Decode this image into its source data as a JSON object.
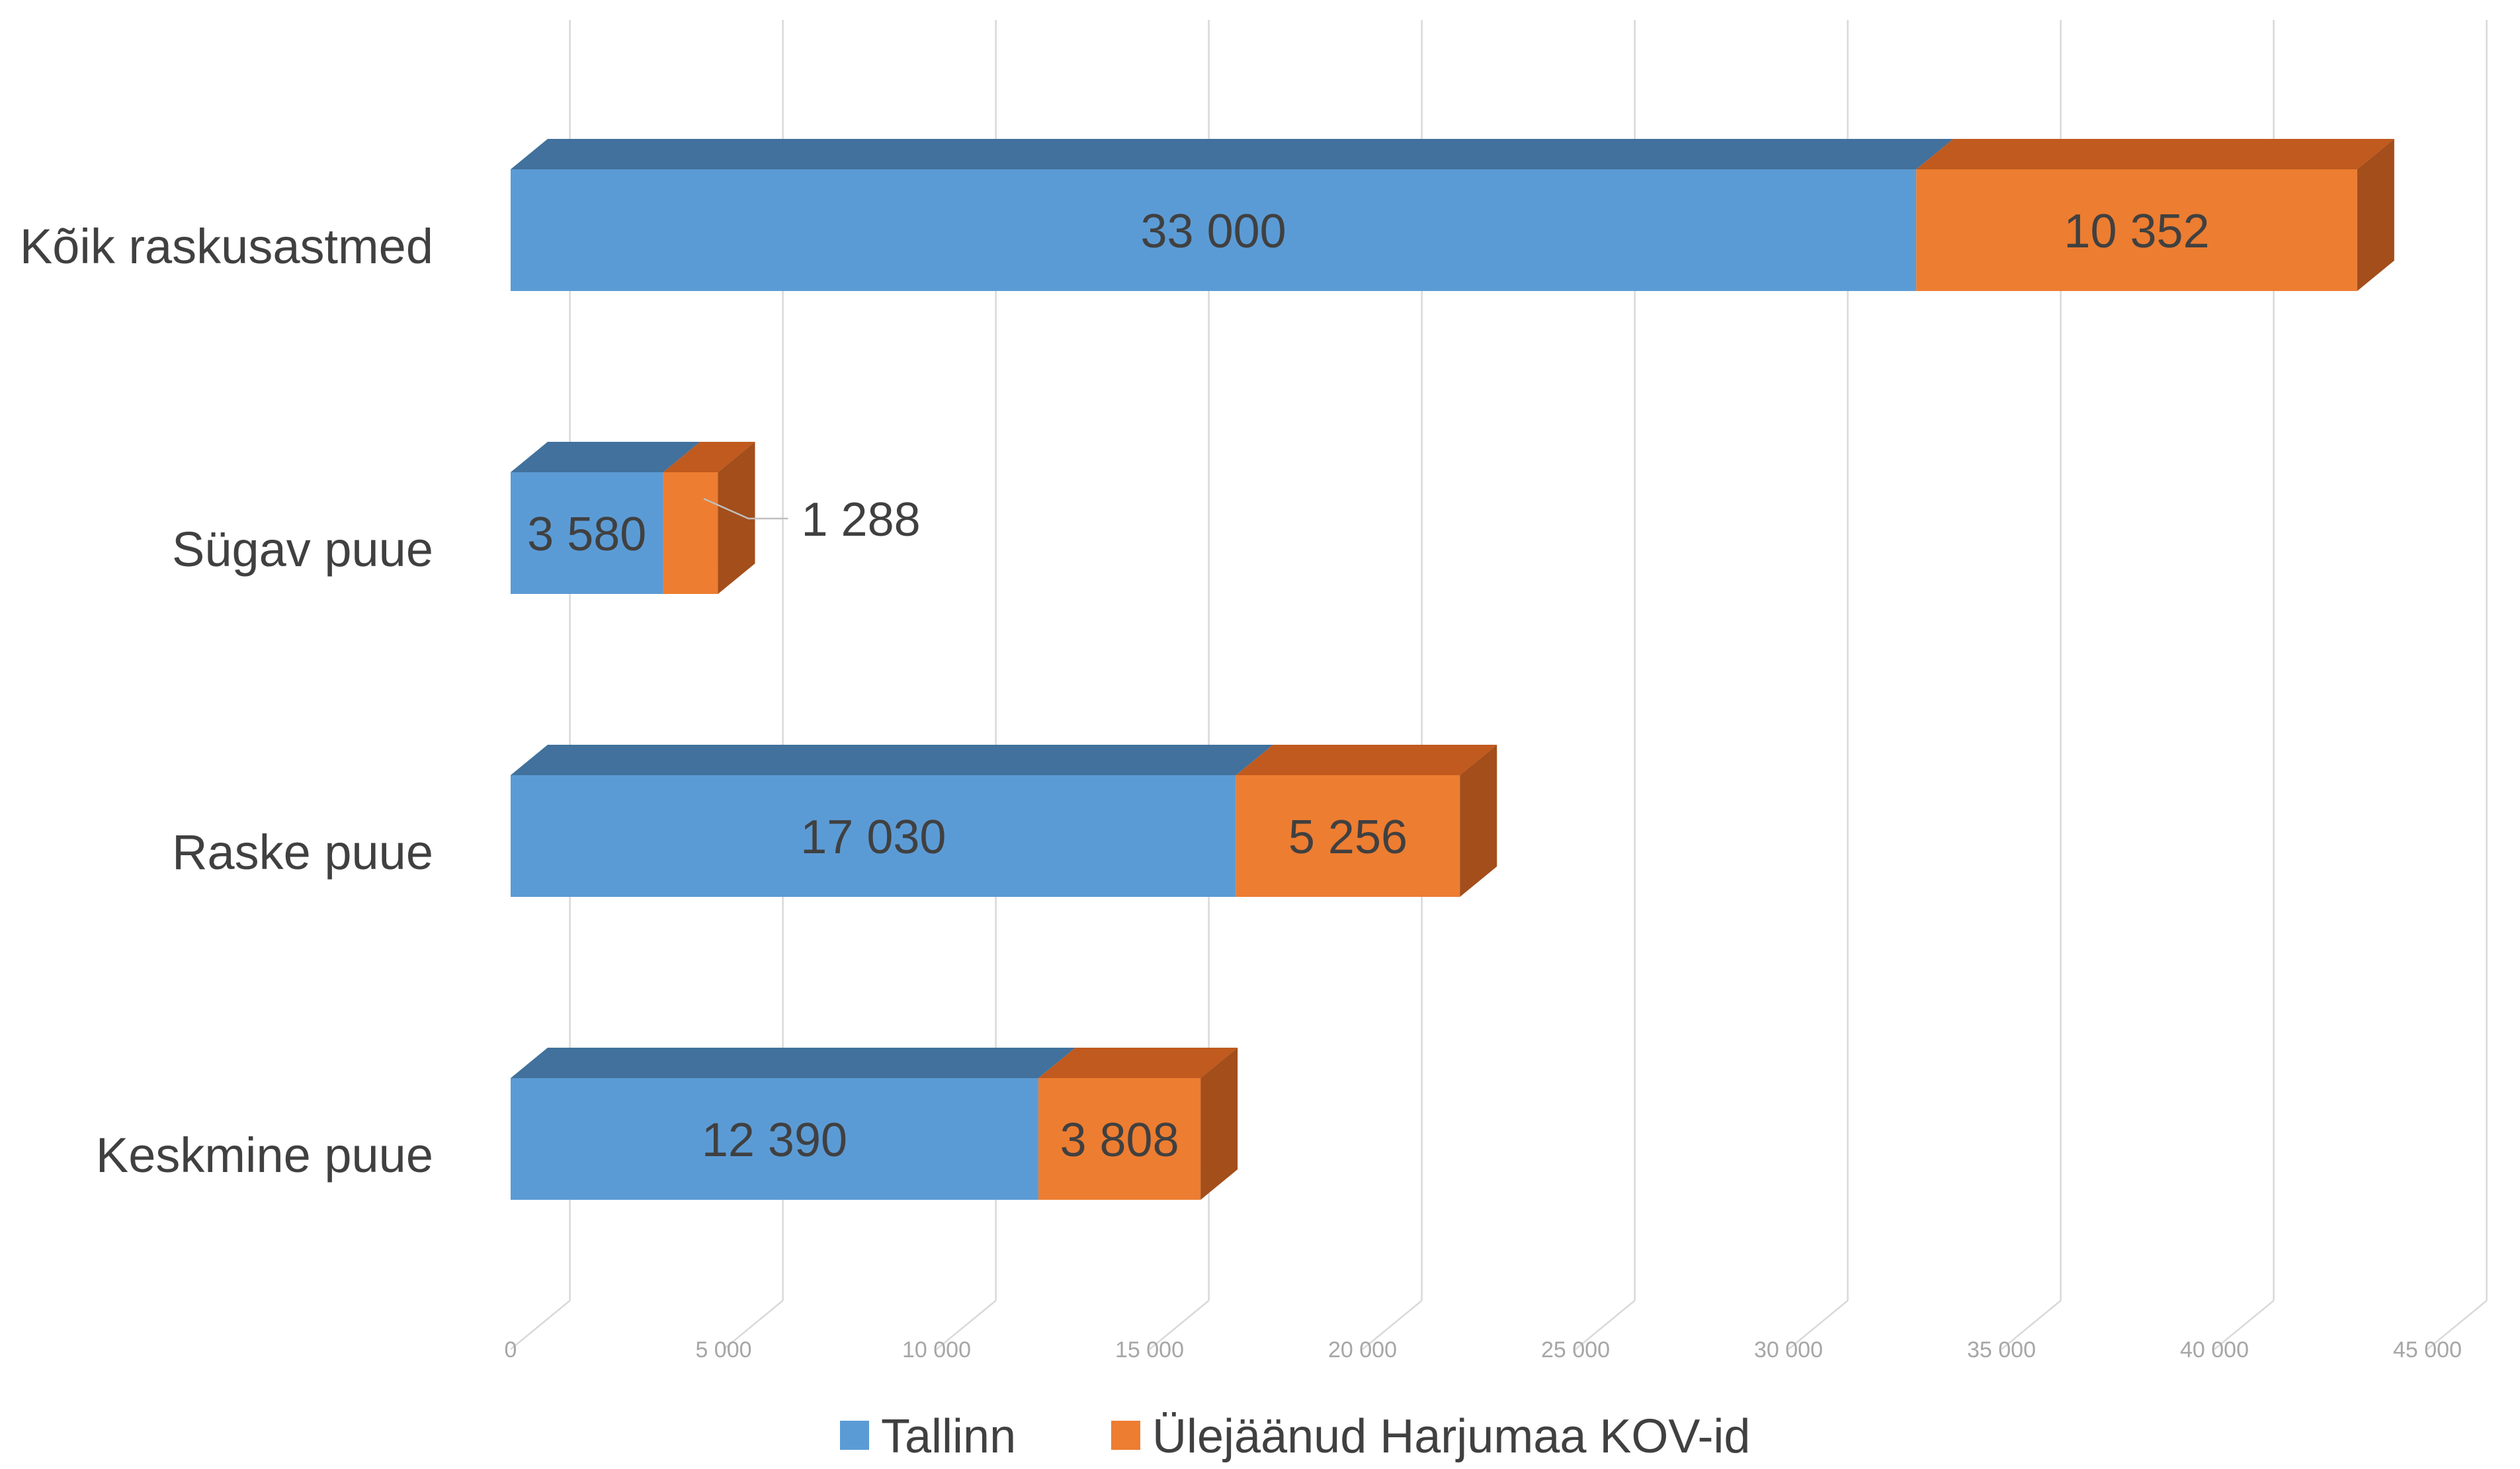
{
  "chart_data": {
    "type": "bar",
    "orientation": "horizontal",
    "stacked": true,
    "style": "3d",
    "title": "",
    "xlabel": "",
    "ylabel": "",
    "categories": [
      "Kõik raskusastmed",
      "Sügav puue",
      "Raske puue",
      "Keskmine puue"
    ],
    "series": [
      {
        "name": "Tallinn",
        "values": [
          33000,
          3580,
          17030,
          12390
        ],
        "labels": [
          "33 000",
          "3 580",
          "17 030",
          "12 390"
        ]
      },
      {
        "name": "Ülejäänud Harjumaa KOV-id",
        "values": [
          10352,
          1288,
          5256,
          3808
        ],
        "labels": [
          "10 352",
          "1 288",
          "5 256",
          "3 808"
        ]
      }
    ],
    "xlim": [
      0,
      45000
    ],
    "ticks": [
      0,
      5000,
      10000,
      15000,
      20000,
      25000,
      30000,
      35000,
      40000,
      45000
    ],
    "tick_labels": [
      "0",
      "5 000",
      "10 000",
      "15 000",
      "20 000",
      "25 000",
      "30 000",
      "35 000",
      "40 000",
      "45 000"
    ],
    "grid": true,
    "legend_position": "bottom",
    "colors": {
      "Tallinn": "#5B9BD5",
      "Tallinn_top": "#41719C",
      "Harjumaa": "#ED7D31",
      "Harjumaa_top": "#C05A1E",
      "Harjumaa_side": "#A34E1B",
      "label_text": "#404040",
      "axis_text": "#a6a6a6",
      "grid": "#d9d9d9"
    }
  }
}
